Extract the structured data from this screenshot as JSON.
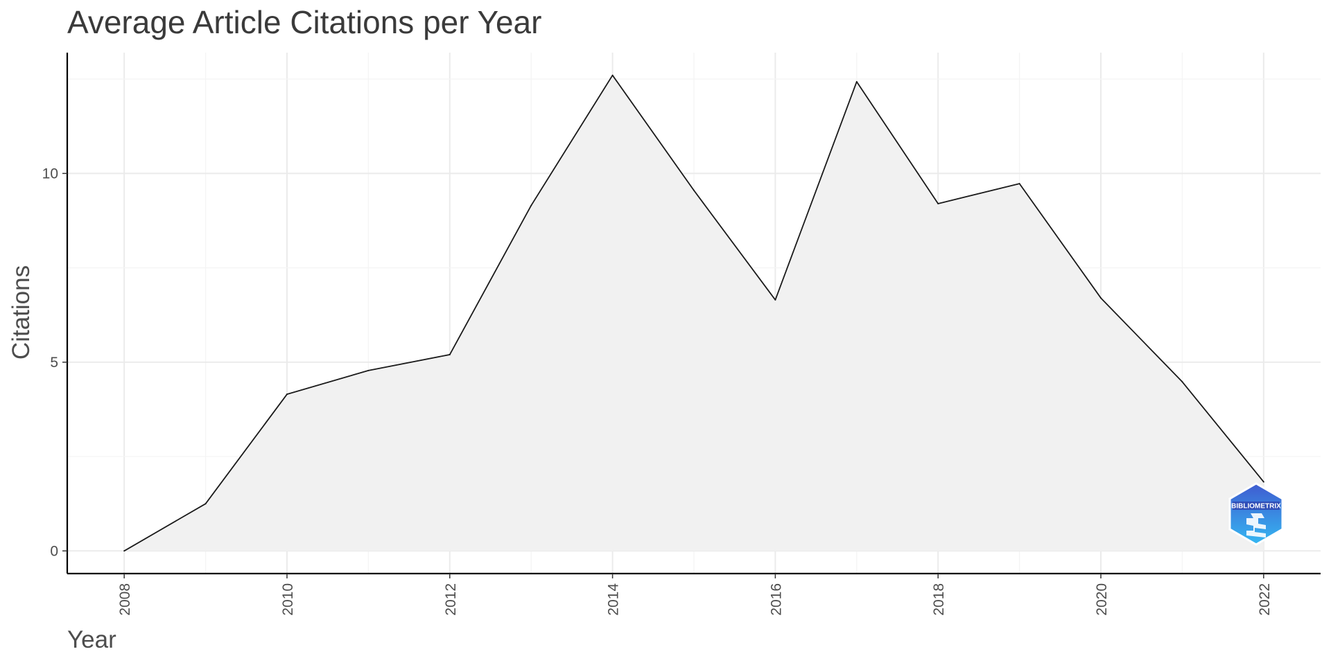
{
  "chart_data": {
    "type": "area",
    "title": "Average Article Citations per Year",
    "xlabel": "Year",
    "ylabel": "Citations",
    "x": [
      2008,
      2009,
      2010,
      2011,
      2012,
      2013,
      2014,
      2015,
      2016,
      2017,
      2018,
      2019,
      2020,
      2021,
      2022
    ],
    "values": [
      0,
      1.25,
      4.15,
      4.78,
      5.2,
      9.15,
      12.6,
      9.55,
      6.65,
      12.43,
      9.2,
      9.73,
      6.7,
      4.48,
      1.83
    ],
    "xlim": [
      2007.3,
      2022.7
    ],
    "ylim": [
      -0.6,
      13.2
    ],
    "x_ticks": [
      2008,
      2010,
      2012,
      2014,
      2016,
      2018,
      2020,
      2022
    ],
    "y_ticks": [
      0,
      5,
      10
    ],
    "grid": true,
    "legend": "none",
    "colors": {
      "area_fill": "#f1f1f1",
      "line": "#1a1a1a",
      "grid_major": "#ebebeb",
      "grid_minor": "#f4f4f4",
      "axis": "#000000"
    }
  },
  "watermark": {
    "text": "BIBLIOMETRIX",
    "icon": "bibliometrix-hexagon-logo",
    "colors": {
      "top": "#3f5bd0",
      "bottom": "#35b8f2"
    }
  }
}
